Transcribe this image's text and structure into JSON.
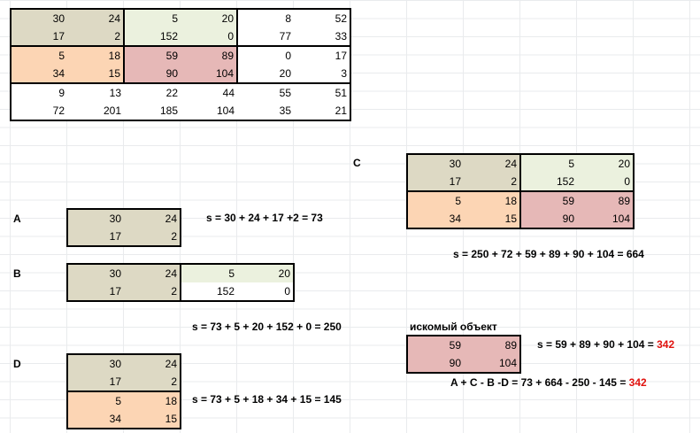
{
  "main": {
    "rows": [
      [
        "30",
        "24",
        "5",
        "20",
        "8",
        "52"
      ],
      [
        "17",
        "2",
        "152",
        "0",
        "77",
        "33"
      ],
      [
        "5",
        "18",
        "59",
        "89",
        "0",
        "17"
      ],
      [
        "34",
        "15",
        "90",
        "104",
        "20",
        "3"
      ],
      [
        "9",
        "13",
        "22",
        "44",
        "55",
        "51"
      ],
      [
        "72",
        "201",
        "185",
        "104",
        "35",
        "21"
      ]
    ]
  },
  "labels": {
    "a": "A",
    "b": "B",
    "c": "C",
    "d": "D"
  },
  "block_a": {
    "rows": [
      [
        "30",
        "24"
      ],
      [
        "17",
        "2"
      ]
    ],
    "formula": "s = 30 + 24 + 17 +2 = 73"
  },
  "block_b": {
    "rows": [
      [
        "30",
        "24",
        "5",
        "20"
      ],
      [
        "17",
        "2",
        "152",
        "0"
      ]
    ],
    "formula": "s = 73 + 5 + 20 + 152 + 0 = 250"
  },
  "block_c": {
    "rows": [
      [
        "30",
        "24",
        "5",
        "20"
      ],
      [
        "17",
        "2",
        "152",
        "0"
      ],
      [
        "5",
        "18",
        "59",
        "89"
      ],
      [
        "34",
        "15",
        "90",
        "104"
      ]
    ],
    "formula": "s = 250 + 72 + 59 + 89 + 90 + 104 = 664"
  },
  "block_d": {
    "rows": [
      [
        "30",
        "24"
      ],
      [
        "17",
        "2"
      ],
      [
        "5",
        "18"
      ],
      [
        "34",
        "15"
      ]
    ],
    "formula": "s = 73 + 5 + 18 + 34 + 15 = 145"
  },
  "target": {
    "title": "искомый объект",
    "rows": [
      [
        "59",
        "89"
      ],
      [
        "90",
        "104"
      ]
    ],
    "formula_prefix": "s = 59 + 89 + 90 + 104 = ",
    "formula_result": "342",
    "final_prefix": "A + C - B -D = 73 + 664 - 250 - 145 = ",
    "final_result": "342"
  },
  "colors": {
    "gray_tan": "#ddd9c4",
    "light_green": "#ebf1de",
    "peach": "#fcd5b4",
    "rose": "#e6b8b7",
    "result_red": "#e0120e"
  }
}
